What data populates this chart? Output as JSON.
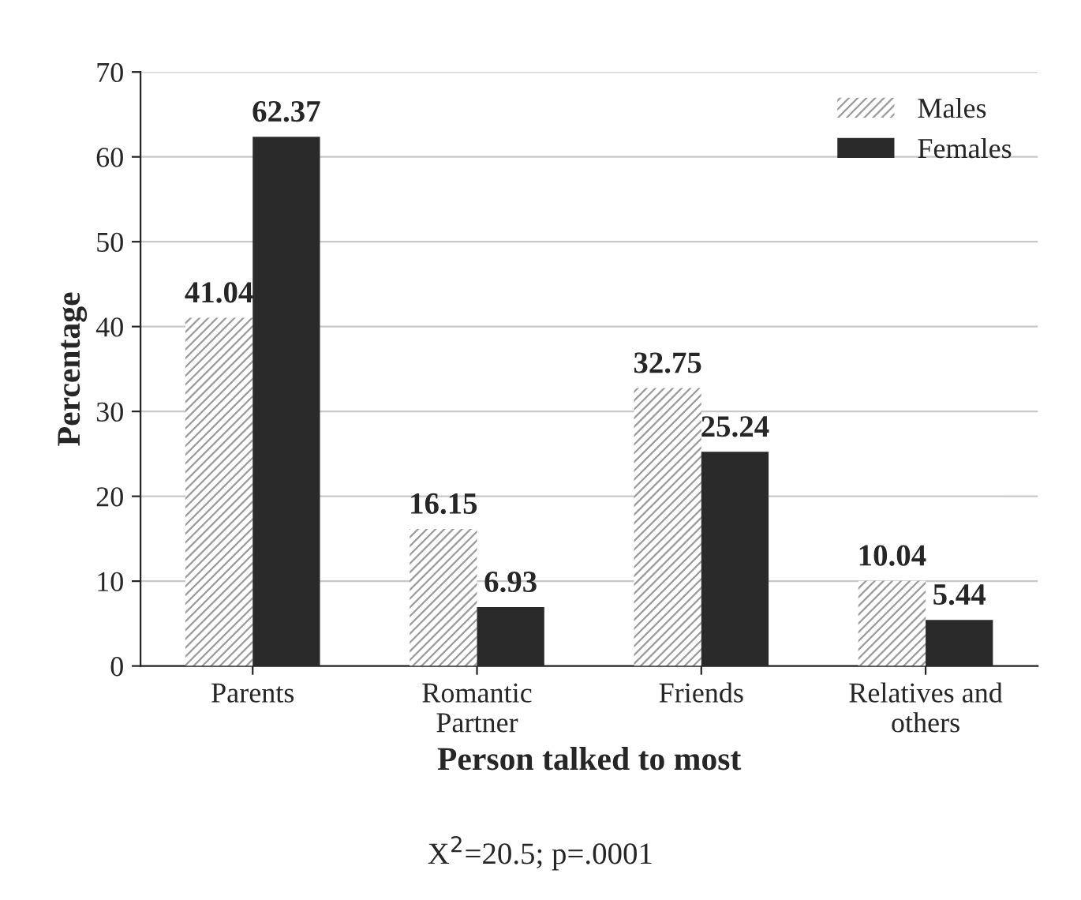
{
  "chart_data": {
    "type": "bar",
    "xlabel": "Person talked to most",
    "ylabel": "Percentage",
    "categories": [
      "Parents",
      "Romantic\nPartner",
      "Friends",
      "Relatives and\nothers"
    ],
    "series": [
      {
        "name": "Males",
        "color": "#9a9a9a",
        "values": [
          41.04,
          16.15,
          32.75,
          10.04
        ]
      },
      {
        "name": "Females",
        "color": "#2a2a2a",
        "values": [
          62.37,
          6.93,
          25.24,
          5.44
        ]
      }
    ],
    "ylim": [
      0,
      70
    ],
    "yticks": [
      0,
      10,
      20,
      30,
      40,
      50,
      60,
      70
    ],
    "grid": "y",
    "legend": "top right",
    "data_labels": true,
    "annotations": [
      "X$^{2}$=20.5; p=.0001"
    ]
  }
}
